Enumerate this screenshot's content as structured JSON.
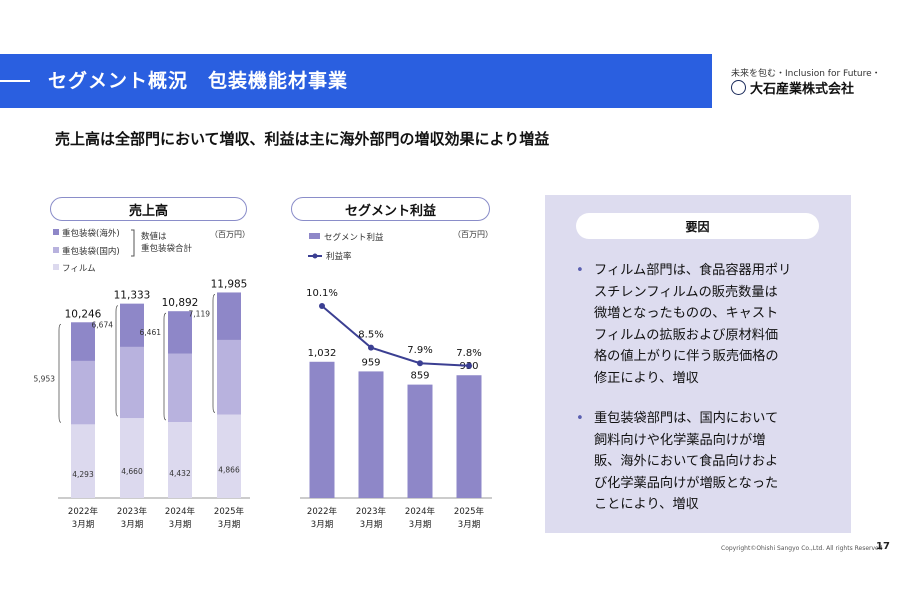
{
  "header": {
    "title": "セグメント概況　包装機能材事業",
    "tagline": "未来を包む・Inclusion for Future・",
    "company": "大石産業株式会社"
  },
  "headline": "売上高は全部門において増収、利益は主に海外部門の増収効果により増益",
  "sales_panel": {
    "title": "売上高",
    "unit": "（百万円）",
    "legend": [
      "重包装袋(海外)",
      "重包装袋(国内)",
      "フィルム"
    ],
    "brace_note": [
      "数値は",
      "重包装袋合計"
    ]
  },
  "profit_panel": {
    "title": "セグメント利益",
    "unit": "（百万円）",
    "legend": [
      "セグメント利益",
      "利益率"
    ]
  },
  "factors": {
    "title": "要因",
    "bullet1": [
      "フィルム部門は、食品容器用ポリ",
      "スチレンフィルムの販売数量は",
      "微増となったものの、キャスト",
      "フィルムの拡販および原材料価",
      "格の値上がりに伴う販売価格の",
      "修正により、増収"
    ],
    "bullet2": [
      "重包装袋部門は、国内において",
      "飼料向けや化学薬品向けが増",
      "販、海外において食品向けおよ",
      "び化学薬品向けが増販となった",
      "ことにより、増収"
    ]
  },
  "footer": {
    "copyright": "Copyright©Ohishi Sangyo Co.,Ltd. All rights Reserved",
    "page": "17"
  },
  "colors": {
    "header": "#2a5fe0",
    "overseas": "#8e87c8",
    "domestic": "#b8b2de",
    "film": "#dcd9ee",
    "profit_bar": "#8e87c8",
    "margin_line": "#3b3f92",
    "panel_bg": "#dddcef"
  },
  "chart_data": [
    {
      "type": "bar",
      "title": "売上高",
      "unit": "百万円",
      "categories": [
        [
          "2022年",
          "3月期"
        ],
        [
          "2023年",
          "3月期"
        ],
        [
          "2024年",
          "3月期"
        ],
        [
          "2025年",
          "3月期"
        ]
      ],
      "series": [
        {
          "name": "フィルム",
          "values": [
            4293,
            4660,
            4432,
            4866
          ]
        },
        {
          "name": "重包装袋(国内)",
          "values": [
            3700,
            4150,
            3980,
            4350
          ]
        },
        {
          "name": "重包装袋(海外)",
          "values": [
            2253,
            2523,
            2480,
            2769
          ]
        }
      ],
      "heavy_bag_totals": [
        5953,
        6674,
        6461,
        7119
      ],
      "totals": [
        10246,
        11333,
        10892,
        11985
      ],
      "total_labels": [
        "10,246",
        "11,333",
        "10,892",
        "11,985"
      ],
      "film_labels": [
        "4,293",
        "4,660",
        "4,432",
        "4,866"
      ],
      "heavy_bag_labels": [
        "5,953",
        "6,674",
        "6,461",
        "7,119"
      ],
      "stacked": true
    },
    {
      "type": "bar",
      "title": "セグメント利益",
      "unit": "百万円",
      "categories": [
        [
          "2022年",
          "3月期"
        ],
        [
          "2023年",
          "3月期"
        ],
        [
          "2024年",
          "3月期"
        ],
        [
          "2025年",
          "3月期"
        ]
      ],
      "series": [
        {
          "name": "セグメント利益",
          "values": [
            1032,
            959,
            859,
            930
          ]
        },
        {
          "name": "利益率",
          "type": "line",
          "values": [
            10.1,
            8.5,
            7.9,
            7.8
          ]
        }
      ],
      "value_labels": [
        "1,032",
        "959",
        "859",
        "930"
      ],
      "rate_labels": [
        "10.1%",
        "8.5%",
        "7.9%",
        "7.8%"
      ]
    }
  ]
}
